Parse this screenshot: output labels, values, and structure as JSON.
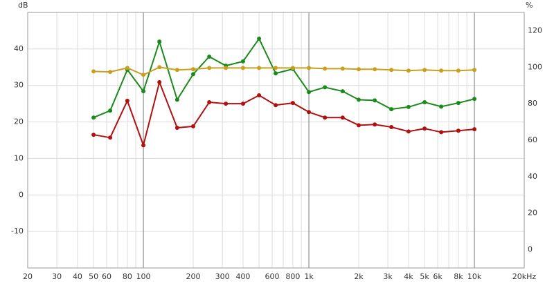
{
  "chart_data": {
    "type": "line",
    "ylabel": "dB",
    "y2label": "%",
    "x": [
      50,
      63,
      80,
      100,
      125,
      160,
      200,
      250,
      315,
      400,
      500,
      630,
      800,
      1000,
      1250,
      1600,
      2000,
      2500,
      3150,
      4000,
      5000,
      6300,
      8000,
      10000
    ],
    "series": [
      {
        "color": "#1a8a1a",
        "values": [
          21.2,
          23.1,
          34.3,
          28.4,
          42.0,
          26.1,
          33.1,
          37.9,
          35.4,
          36.6,
          42.8,
          33.3,
          34.5,
          28.2,
          29.5,
          28.4,
          26.1,
          25.9,
          23.5,
          24.1,
          25.4,
          24.2,
          25.2,
          26.3
        ]
      },
      {
        "color": "#b01010",
        "values": [
          16.5,
          15.7,
          25.8,
          13.6,
          30.9,
          18.4,
          18.8,
          25.4,
          25.0,
          25.0,
          27.3,
          24.6,
          25.2,
          22.7,
          21.2,
          21.2,
          19.1,
          19.3,
          18.6,
          17.4,
          18.2,
          17.2,
          17.6,
          18.0
        ]
      },
      {
        "color": "#c8a020",
        "axis": "y2",
        "values": [
          97.7,
          97.4,
          99.6,
          95.8,
          100.0,
          98.5,
          98.9,
          99.6,
          99.6,
          99.6,
          99.6,
          99.6,
          99.6,
          99.6,
          99.2,
          99.2,
          98.9,
          98.9,
          98.5,
          98.1,
          98.5,
          98.1,
          98.1,
          98.5
        ]
      }
    ],
    "xscale": "log",
    "xlim": [
      20,
      20000
    ],
    "xticks": [
      20,
      30,
      40,
      50,
      60,
      80,
      100,
      200,
      300,
      400,
      600,
      800,
      {
        "value": 1000,
        "label": "1k"
      },
      {
        "value": 2000,
        "label": "2k"
      },
      {
        "value": 3000,
        "label": "3k"
      },
      {
        "value": 4000,
        "label": "4k"
      },
      {
        "value": 5000,
        "label": "5k"
      },
      {
        "value": 6000,
        "label": "6k"
      },
      {
        "value": 8000,
        "label": "8k"
      },
      {
        "value": 10000,
        "label": "10k"
      },
      {
        "value": 20000,
        "label": "20kHz"
      }
    ],
    "minor_xticks": [
      70,
      90,
      500,
      700,
      900,
      7000,
      9000
    ],
    "ylim": [
      -20,
      50
    ],
    "yticks": [
      -10,
      0,
      10,
      20,
      30,
      40
    ],
    "y2lim": [
      -10,
      130
    ],
    "y2ticks": [
      0,
      20,
      40,
      60,
      80,
      100,
      120
    ],
    "grid": true
  }
}
